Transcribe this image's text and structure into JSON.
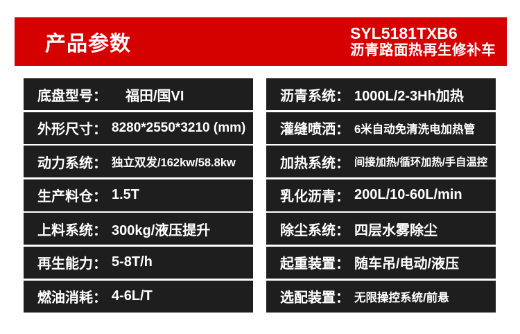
{
  "header": {
    "title": "产品参数",
    "model": "SYL5181TXB6",
    "product_name": "沥青路面热再生修补车"
  },
  "colors": {
    "accent_red": "#d50000",
    "row_background": "#1e1e1e",
    "text_white": "#ffffff",
    "page_background": "#ffffff"
  },
  "specs": {
    "left": [
      {
        "label": "底盘型号：",
        "value": "福田/国VI"
      },
      {
        "label": "外形尺寸：",
        "value": "8280*2550*3210 (mm)"
      },
      {
        "label": "动力系统：",
        "value": "独立双发/162kw/58.8kw"
      },
      {
        "label": "生产料仓：",
        "value": "1.5T"
      },
      {
        "label": "上料系统：",
        "value": "300kg/液压提升"
      },
      {
        "label": "再生能力：",
        "value": "5-8T/h"
      },
      {
        "label": "燃油消耗：",
        "value": "4-6L/T"
      }
    ],
    "right": [
      {
        "label": "沥青系统：",
        "value": "1000L/2-3Hh加热"
      },
      {
        "label": "灌缝喷洒：",
        "value": "6米自动免清洗电加热管"
      },
      {
        "label": "加热系统：",
        "value": "间接加热/循环加热/手自温控"
      },
      {
        "label": "乳化沥青：",
        "value": "200L/10-60L/min"
      },
      {
        "label": "除尘系统：",
        "value": "四层水雾除尘"
      },
      {
        "label": "起重装置：",
        "value": "随车吊/电动/液压"
      },
      {
        "label": "选配装置：",
        "value": "无限操控系统/前悬"
      }
    ]
  }
}
